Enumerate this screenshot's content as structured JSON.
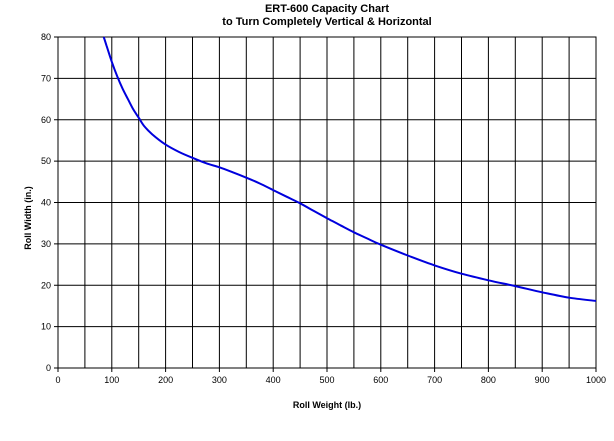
{
  "chart_data": {
    "type": "line",
    "title": "ERT-600 Capacity Chart",
    "subtitle": "to Turn Completely Vertical & Horizontal",
    "xlabel": "Roll Weight (lb.)",
    "ylabel": "Roll Width (in.)",
    "xlim": [
      0,
      1000
    ],
    "ylim": [
      0,
      80
    ],
    "x_ticks": [
      0,
      100,
      200,
      300,
      400,
      500,
      600,
      700,
      800,
      900,
      1000
    ],
    "x_minor_step": 50,
    "y_ticks": [
      0,
      10,
      20,
      30,
      40,
      50,
      60,
      70,
      80
    ],
    "grid": true,
    "line_color": "#0000dd",
    "series": [
      {
        "x": [
          85,
          90,
          100,
          110,
          120,
          130,
          140,
          150,
          160,
          175,
          200,
          225,
          250,
          275,
          300,
          325,
          350,
          375,
          400,
          425,
          450,
          475,
          500,
          525,
          550,
          575,
          600,
          650,
          700,
          750,
          800,
          850,
          900,
          950,
          1000
        ],
        "y": [
          80,
          78,
          74,
          70.5,
          67.5,
          65,
          62.5,
          60.5,
          58.5,
          56.5,
          54,
          52.2,
          50.8,
          49.5,
          48.5,
          47.3,
          46,
          44.6,
          43,
          41.4,
          39.8,
          38,
          36.2,
          34.5,
          32.8,
          31.3,
          29.8,
          27.2,
          24.8,
          22.8,
          21.2,
          19.8,
          18.3,
          17,
          16.2
        ]
      }
    ]
  }
}
